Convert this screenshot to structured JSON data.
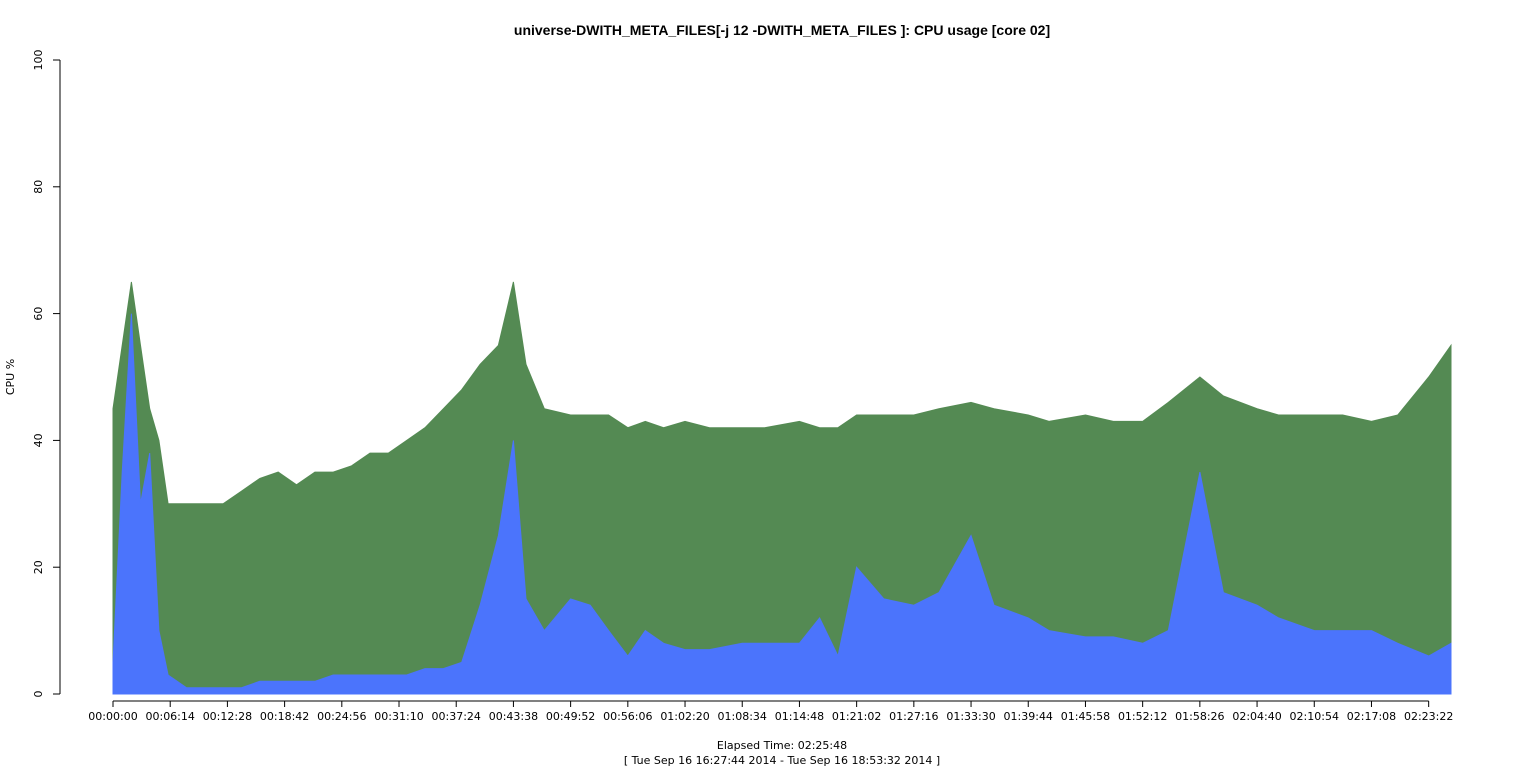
{
  "chart_data": {
    "type": "area",
    "title": "universe-DWITH_META_FILES[-j 12 -DWITH_META_FILES ]: CPU usage [core 02]",
    "ylabel": "CPU %",
    "xlabel": "Elapsed Time: 02:25:48",
    "xlabel2": "[ Tue Sep 16 16:27:44 2014 - Tue Sep 16 18:53:32 2014 ]",
    "ylim": [
      0,
      100
    ],
    "y_ticks": [
      0,
      20,
      40,
      60,
      80,
      100
    ],
    "xlim_seconds": [
      0,
      8748
    ],
    "x_ticks": [
      "00:00:00",
      "00:06:14",
      "00:12:28",
      "00:18:42",
      "00:24:56",
      "00:31:10",
      "00:37:24",
      "00:43:38",
      "00:49:52",
      "00:56:06",
      "01:02:20",
      "01:08:34",
      "01:14:48",
      "01:21:02",
      "01:27:16",
      "01:33:30",
      "01:39:44",
      "01:45:58",
      "01:52:12",
      "01:58:26",
      "02:04:40",
      "02:10:54",
      "02:17:08",
      "02:23:22"
    ],
    "grid": false,
    "series": [
      {
        "color": "#548a53",
        "x": [
          "00:00:00",
          "00:01:00",
          "00:02:00",
          "00:03:00",
          "00:04:00",
          "00:05:00",
          "00:06:00",
          "00:08:00",
          "00:10:00",
          "00:12:00",
          "00:14:00",
          "00:16:00",
          "00:18:00",
          "00:20:00",
          "00:22:00",
          "00:24:00",
          "00:26:00",
          "00:28:00",
          "00:30:00",
          "00:32:00",
          "00:34:00",
          "00:36:00",
          "00:38:00",
          "00:40:00",
          "00:42:00",
          "00:43:38",
          "00:45:00",
          "00:47:00",
          "00:49:52",
          "00:52:00",
          "00:54:00",
          "00:56:06",
          "00:58:00",
          "01:00:00",
          "01:02:20",
          "01:05:00",
          "01:08:34",
          "01:11:00",
          "01:14:48",
          "01:17:00",
          "01:19:00",
          "01:21:02",
          "01:24:00",
          "01:27:16",
          "01:30:00",
          "01:33:30",
          "01:36:00",
          "01:39:44",
          "01:42:00",
          "01:45:58",
          "01:49:00",
          "01:52:12",
          "01:55:00",
          "01:58:26",
          "02:01:00",
          "02:04:40",
          "02:07:00",
          "02:10:54",
          "02:14:00",
          "02:17:08",
          "02:20:00",
          "02:23:22",
          "02:25:48"
        ],
        "values": [
          45,
          55,
          65,
          55,
          45,
          40,
          30,
          30,
          30,
          30,
          32,
          34,
          35,
          33,
          35,
          35,
          36,
          38,
          38,
          40,
          42,
          45,
          48,
          52,
          55,
          65,
          52,
          45,
          44,
          44,
          44,
          42,
          43,
          42,
          43,
          42,
          42,
          42,
          43,
          42,
          42,
          44,
          44,
          44,
          45,
          46,
          45,
          44,
          43,
          44,
          43,
          43,
          46,
          50,
          47,
          45,
          44,
          44,
          44,
          43,
          44,
          50,
          55
        ]
      },
      {
        "color": "#4b74fc",
        "x": [
          "00:00:00",
          "00:01:00",
          "00:02:00",
          "00:03:00",
          "00:04:00",
          "00:05:00",
          "00:06:00",
          "00:08:00",
          "00:10:00",
          "00:12:00",
          "00:14:00",
          "00:16:00",
          "00:18:00",
          "00:20:00",
          "00:22:00",
          "00:24:00",
          "00:26:00",
          "00:28:00",
          "00:30:00",
          "00:32:00",
          "00:34:00",
          "00:36:00",
          "00:38:00",
          "00:40:00",
          "00:42:00",
          "00:43:38",
          "00:45:00",
          "00:47:00",
          "00:49:52",
          "00:52:00",
          "00:54:00",
          "00:56:06",
          "00:58:00",
          "01:00:00",
          "01:02:20",
          "01:05:00",
          "01:08:34",
          "01:11:00",
          "01:14:48",
          "01:17:00",
          "01:19:00",
          "01:21:02",
          "01:24:00",
          "01:27:16",
          "01:30:00",
          "01:33:30",
          "01:36:00",
          "01:39:44",
          "01:42:00",
          "01:45:58",
          "01:49:00",
          "01:52:12",
          "01:55:00",
          "01:58:26",
          "02:01:00",
          "02:04:40",
          "02:07:00",
          "02:10:54",
          "02:14:00",
          "02:17:08",
          "02:20:00",
          "02:23:22",
          "02:25:48"
        ],
        "values": [
          5,
          35,
          60,
          30,
          38,
          10,
          3,
          1,
          1,
          1,
          1,
          2,
          2,
          2,
          2,
          3,
          3,
          3,
          3,
          3,
          4,
          4,
          5,
          14,
          25,
          40,
          15,
          10,
          15,
          14,
          10,
          6,
          10,
          8,
          7,
          7,
          8,
          8,
          8,
          12,
          6,
          20,
          15,
          14,
          16,
          25,
          14,
          12,
          10,
          9,
          9,
          8,
          10,
          35,
          16,
          14,
          12,
          10,
          10,
          10,
          8,
          6,
          8
        ]
      }
    ]
  }
}
